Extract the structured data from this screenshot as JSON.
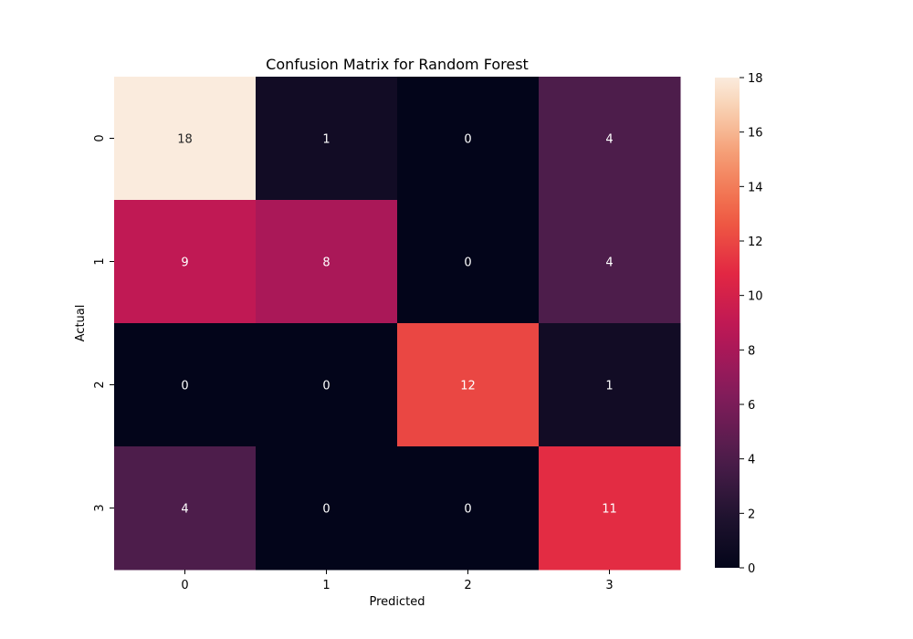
{
  "chart_data": {
    "type": "heatmap",
    "title": "Confusion Matrix for Random Forest",
    "xlabel": "Predicted",
    "ylabel": "Actual",
    "x_categories": [
      "0",
      "1",
      "2",
      "3"
    ],
    "y_categories": [
      "0",
      "1",
      "2",
      "3"
    ],
    "values": [
      [
        18,
        1,
        0,
        4
      ],
      [
        9,
        8,
        0,
        4
      ],
      [
        0,
        0,
        12,
        1
      ],
      [
        4,
        0,
        0,
        11
      ]
    ],
    "colormap": "rocket",
    "colorbar": {
      "range": [
        0,
        18
      ],
      "ticks": [
        "0",
        "2",
        "4",
        "6",
        "8",
        "10",
        "12",
        "14",
        "16",
        "18"
      ]
    },
    "annotated": true,
    "grid": false
  }
}
